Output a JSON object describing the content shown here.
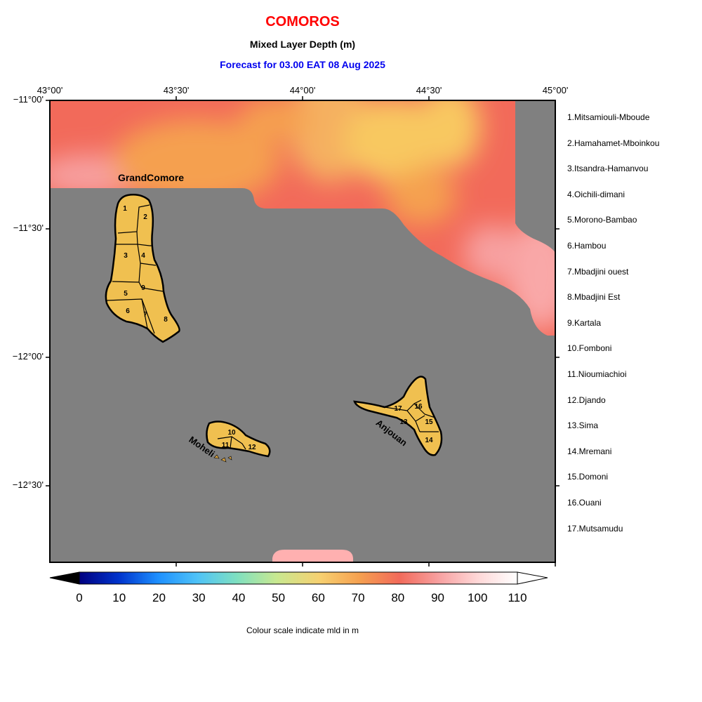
{
  "header": {
    "title": "COMOROS",
    "subtitle": "Mixed Layer Depth (m)",
    "forecast": "Forecast for  03.00 EAT 08 Aug 2025"
  },
  "axes": {
    "lon_labels": [
      "43°00'",
      "43°30'",
      "44°00'",
      "44°30'",
      "45°00'"
    ],
    "lat_labels": [
      "−11°00'",
      "−11°30'",
      "−12°00'",
      "−12°30'"
    ]
  },
  "islands": {
    "grand_comore": "GrandComore",
    "moheli": "Moheli",
    "anjouan": "Anjouan"
  },
  "region_numbers": [
    "1",
    "2",
    "3",
    "4",
    "5",
    "6",
    "7",
    "8",
    "9",
    "10",
    "11",
    "12",
    "13",
    "14",
    "15",
    "16",
    "17"
  ],
  "legend": [
    "1.Mitsamiouli-Mboude",
    "2.Hamahamet-Mboinkou",
    "3.Itsandra-Hamanvou",
    "4.Oichili-dimani",
    "5.Morono-Bambao",
    "6.Hambou",
    "7.Mbadjini ouest",
    "8.Mbadjini Est",
    "9.Kartala",
    "10.Fomboni",
    "11.Nioumiachioi",
    "12.Djando",
    "13.Sima",
    "14.Mremani",
    "15.Domoni",
    "16.Ouani",
    "17.Mutsamudu"
  ],
  "colorbar": {
    "ticks": [
      "0",
      "10",
      "20",
      "30",
      "40",
      "50",
      "60",
      "70",
      "80",
      "90",
      "100",
      "110"
    ],
    "label": "Colour scale indicate mld in m",
    "min": 0,
    "max": 110,
    "colors": [
      "#000080",
      "#0033cc",
      "#1e90ff",
      "#4fc3f7",
      "#7fe0c0",
      "#c8e890",
      "#f7d070",
      "#f5a050",
      "#f26a5a",
      "#f7a0a0",
      "#ffd8d8",
      "#ffffff"
    ]
  },
  "colors": {
    "land": "#f0c050",
    "masked": "#808080",
    "title_red": "#ff0000",
    "forecast_blue": "#0000ee"
  }
}
